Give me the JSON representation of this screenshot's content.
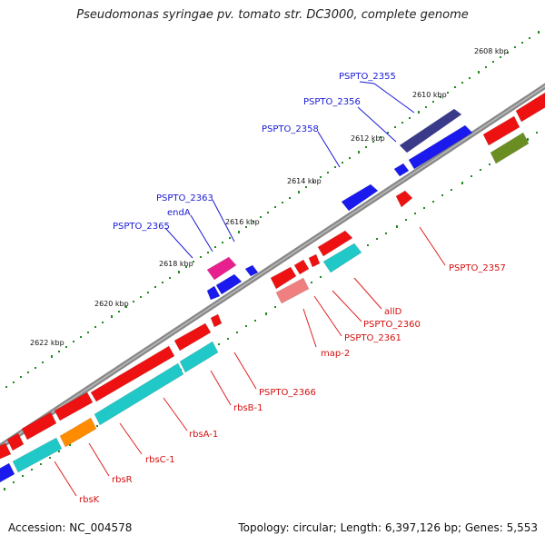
{
  "header": {
    "title": "Pseudomonas syringae pv. tomato str. DC3000, complete genome"
  },
  "footer": {
    "accession": "Accession: NC_004578",
    "summary": "Topology: circular; Length: 6,397,126 bp; Genes: 5,553"
  },
  "map": {
    "tick_labels": [
      "2608 kbp",
      "2610 kbp",
      "2612 kbp",
      "2614 kbp",
      "2616 kbp",
      "2618 kbp",
      "2620 kbp",
      "2622 kbp"
    ],
    "gene_labels_top": [
      "PSPTO_2355",
      "PSPTO_2356",
      "PSPTO_2358",
      "PSPTO_2363",
      "endA",
      "PSPTO_2365"
    ],
    "gene_labels_bottom": [
      "PSPTO_2357",
      "allD",
      "PSPTO_2360",
      "PSPTO_2361",
      "map-2",
      "PSPTO_2366",
      "rbsB-1",
      "rbsA-1",
      "rbsC-1",
      "rbsR",
      "rbsK"
    ],
    "colors": {
      "backbone": "#888888",
      "forward_gene": "#ee1111",
      "reverse_gene": "#1a1aee",
      "dark_blue_gene": "#3a3a8a",
      "cyan_gene": "#20c8c8",
      "magenta_gene": "#e8208e",
      "pink_gene": "#f08080",
      "orange_gene": "#ff8c00",
      "olive_gene": "#6b8e23",
      "tick_marks": "#228b22",
      "blue_label": "#1a1ad6",
      "red_label": "#d41010"
    }
  }
}
